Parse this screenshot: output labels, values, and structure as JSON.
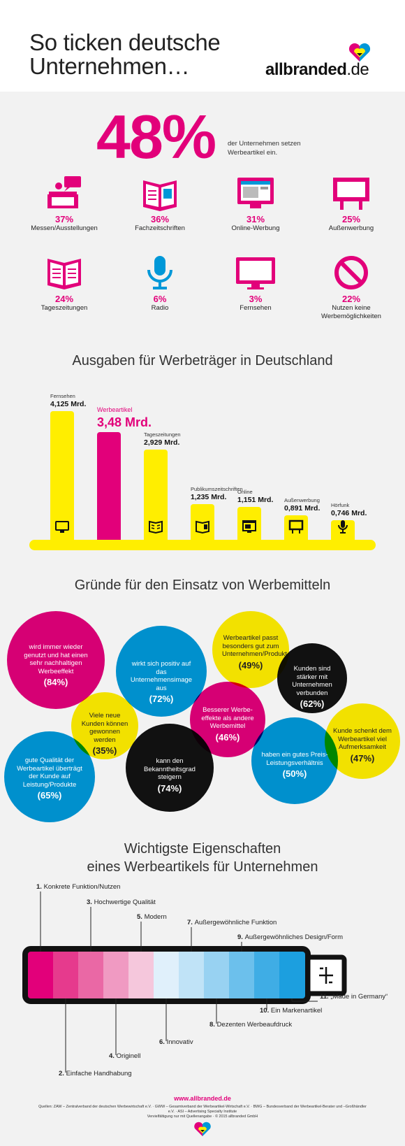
{
  "header": {
    "title_line1": "So ticken deutsche",
    "title_line2": "Unternehmen…",
    "logo_brand": "allbranded",
    "logo_domain": ".de"
  },
  "intro": {
    "percent": "48%",
    "description": "der Unternehmen setzen Werbeartikel ein."
  },
  "media_usage": [
    {
      "icon": "trade-fair-icon",
      "percent": "37%",
      "label": "Messen/Ausstellungen"
    },
    {
      "icon": "magazine-icon",
      "percent": "36%",
      "label": "Fachzeitschriften"
    },
    {
      "icon": "web-screen-icon",
      "percent": "31%",
      "label": "Online-Werbung"
    },
    {
      "icon": "billboard-icon",
      "percent": "25%",
      "label": "Außenwerbung"
    },
    {
      "icon": "newspaper-icon",
      "percent": "24%",
      "label": "Tageszeitungen"
    },
    {
      "icon": "microphone-icon",
      "percent": "6%",
      "label": "Radio"
    },
    {
      "icon": "tv-icon",
      "percent": "3%",
      "label": "Fernsehen"
    },
    {
      "icon": "no-entry-icon",
      "percent": "22%",
      "label": "Nutzen keine Werbemöglichkeiten"
    }
  ],
  "spending": {
    "title": "Ausgaben für Werbeträger in Deutschland",
    "chart_data": {
      "type": "bar",
      "title": "Ausgaben für Werbeträger in Deutschland",
      "categories": [
        "Fernsehen",
        "Werbeartikel",
        "Tageszeitungen",
        "Publikumszeitschriften",
        "Online",
        "Außenwerbung",
        "Hörfunk"
      ],
      "values": [
        4.125,
        3.48,
        2.929,
        1.235,
        1.151,
        0.891,
        0.746
      ],
      "value_labels": [
        "4,125 Mrd.",
        "3,48 Mrd.",
        "2,929 Mrd.",
        "1,235 Mrd.",
        "1,151 Mrd.",
        "0,891 Mrd.",
        "0,746 Mrd."
      ],
      "icons": [
        "tv-icon",
        "",
        "newspaper-icon",
        "magazine-icon",
        "web-screen-icon",
        "billboard-icon",
        "microphone-icon"
      ],
      "highlight": "Werbeartikel",
      "colors": {
        "default": "#ffee00",
        "highlight": "#e2007a"
      }
    }
  },
  "reasons": {
    "title": "Gründe für den Einsatz von Werbemitteln",
    "items": [
      {
        "text": "wird immer wieder genutzt und hat einen sehr nachhaltigen Werbeeffekt",
        "pct": "(84%)",
        "color": "#e2007a"
      },
      {
        "text": "wirkt sich positiv auf das Unternehmensimage aus",
        "pct": "(72%)",
        "color": "#0098d8"
      },
      {
        "text": "Werbeartikel passt besonders gut zum Unternehmen/Produkt",
        "pct": "(49%)",
        "color": "#ffee00"
      },
      {
        "text": "Kunden sind stärker mit Unternehmen verbunden",
        "pct": "(62%)",
        "color": "#111111"
      },
      {
        "text": "Viele neue Kunden können gewonnen werden",
        "pct": "(35%)",
        "color": "#ffee00"
      },
      {
        "text": "Besserer Werbe-effekte als andere Werbemittel",
        "pct": "(46%)",
        "color": "#e2007a"
      },
      {
        "text": "Kunde schenkt dem Werbeartikel viel Aufmerksamkeit",
        "pct": "(47%)",
        "color": "#ffee00"
      },
      {
        "text": "gute Qualität der Werbeartikel überträgt der Kunde auf Leistung/Produkte",
        "pct": "(65%)",
        "color": "#0098d8"
      },
      {
        "text": "kann den Bekanntheitsgrad steigern",
        "pct": "(74%)",
        "color": "#111111"
      },
      {
        "text": "haben ein gutes Preis-Leistungsverhältnis",
        "pct": "(50%)",
        "color": "#0098d8"
      }
    ]
  },
  "properties": {
    "title_line1": "Wichtigste Eigenschaften",
    "title_line2": "eines Werbeartikels für Unternehmen",
    "items": [
      {
        "num": "1.",
        "label": "Konkrete Funktion/Nutzen"
      },
      {
        "num": "2.",
        "label": "Einfache Handhabung"
      },
      {
        "num": "3.",
        "label": "Hochwertige Qualität"
      },
      {
        "num": "4.",
        "label": "Originell"
      },
      {
        "num": "5.",
        "label": "Modern"
      },
      {
        "num": "6.",
        "label": "Innovativ"
      },
      {
        "num": "7.",
        "label": "Außergewöhnliche Funktion"
      },
      {
        "num": "8.",
        "label": "Dezenten Werbeaufdruck"
      },
      {
        "num": "9.",
        "label": "Außergewöhnliches Design/Form"
      },
      {
        "num": "10.",
        "label": "Ein Markenartikel"
      },
      {
        "num": "11.",
        "label": "„Made in Germany“"
      }
    ],
    "segment_colors": [
      "#e2007a",
      "#e63a8d",
      "#ea68a5",
      "#f09ac2",
      "#f5c7dc",
      "#e0f0fb",
      "#c0e3f7",
      "#98d2f2",
      "#6cc0ec",
      "#3fade5",
      "#1c9fdf"
    ]
  },
  "footer": {
    "url": "www.allbranded.de",
    "sources": "Quellen: ZAW – Zentralverband der deutschen Werbewirtschaft e.V. · GWW – Gesamtverband der Werbeartikel-Wirtschaft e.V. · BWG – Bundesverband der Werbeartikel-Berater und –Großhändler e.V. · ASI – Advertising Specialty Institute",
    "copyright": "Vervielfältigung nur mit Quellenangabe · © 2015 allbranded GmbH"
  }
}
